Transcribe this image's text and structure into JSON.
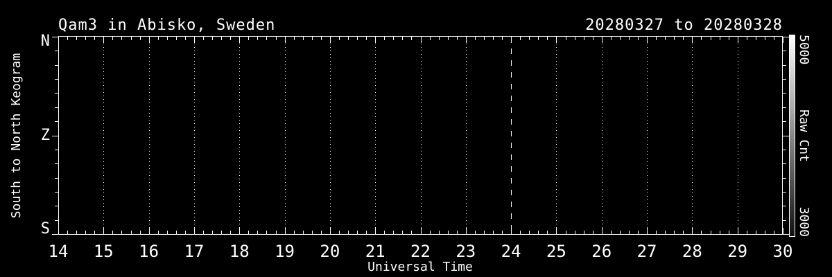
{
  "window": {
    "background_color": "#000000",
    "foreground_color": "#ffffff"
  },
  "chart_data": {
    "type": "heatmap",
    "title": "Qam3 in Abisko, Sweden",
    "date_range": "20280327 to 20280328",
    "xlabel": "Universal Time",
    "ylabel": "South to North Keogram",
    "xlim": [
      14,
      30
    ],
    "x_ticks": [
      14,
      15,
      16,
      17,
      18,
      19,
      20,
      21,
      22,
      23,
      24,
      25,
      26,
      27,
      28,
      29,
      30
    ],
    "x_minor_per_unit": 5,
    "y_tick_labels": [
      "N",
      "Z",
      "S"
    ],
    "y_minor_divisions": 14,
    "grid": "dotted-vertical-at-each-hour",
    "reference_line_x": 24,
    "reference_line_style": "dashed",
    "values": [],
    "colorbar": {
      "label": "Raw Cnt",
      "top_label": "5000",
      "bottom_label": "3000",
      "top_color": "#ffffff",
      "bottom_color": "#101010"
    }
  }
}
